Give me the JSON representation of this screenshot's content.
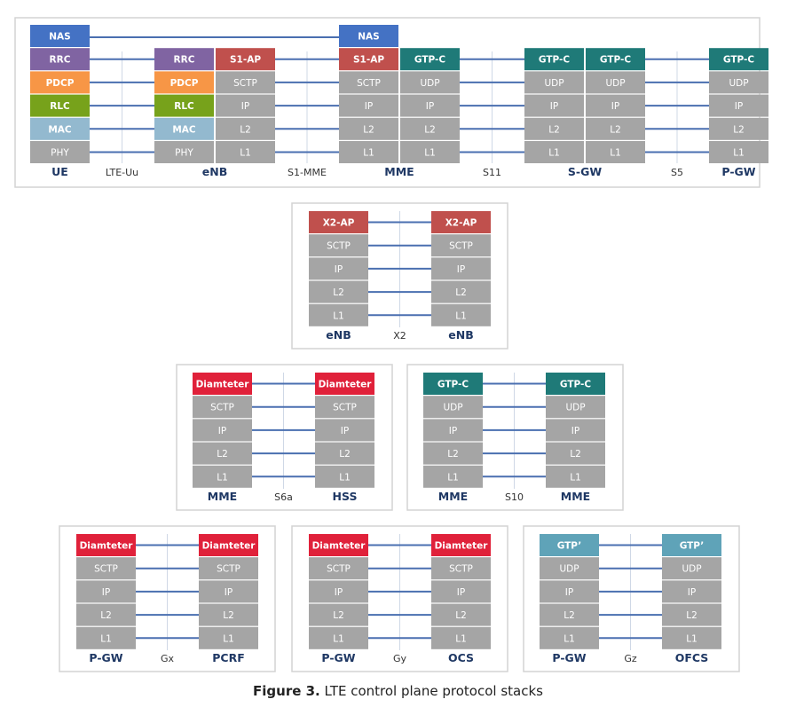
{
  "caption": {
    "label": "Figure 3.",
    "text": "LTE control plane protocol stacks"
  },
  "colors": {
    "nas": "#4472c4",
    "rrc": "#8064a2",
    "pdcp": "#f79646",
    "rlc": "#77a21b",
    "mac": "#93b9cf",
    "gray": "#a5a5a5",
    "red": "#c0504d",
    "teal": "#1f7a78",
    "crimson": "#e0213a",
    "gtpp": "#5fa3b8",
    "entity": "#1f3864",
    "line": "#4a6fb0"
  },
  "panels": [
    {
      "id": "main",
      "stacks": [
        {
          "name": "UE",
          "layers": [
            [
              "NAS",
              "nas"
            ],
            [
              "RRC",
              "rrc"
            ],
            [
              "PDCP",
              "pdcp"
            ],
            [
              "RLC",
              "rlc"
            ],
            [
              "MAC",
              "mac"
            ],
            [
              "PHY",
              "gray"
            ]
          ]
        },
        {
          "name": "eNB",
          "layers": [
            [
              "RRC",
              "rrc"
            ],
            [
              "PDCP",
              "pdcp"
            ],
            [
              "RLC",
              "rlc"
            ],
            [
              "MAC",
              "mac"
            ],
            [
              "PHY",
              "gray"
            ]
          ]
        },
        {
          "name": "",
          "layers": [
            [
              "S1-AP",
              "red"
            ],
            [
              "SCTP",
              "gray"
            ],
            [
              "IP",
              "gray"
            ],
            [
              "L2",
              "gray"
            ],
            [
              "L1",
              "gray"
            ]
          ]
        },
        {
          "name": "MME",
          "layers": [
            [
              "NAS",
              "nas"
            ],
            [
              "S1-AP",
              "red"
            ],
            [
              "SCTP",
              "gray"
            ],
            [
              "IP",
              "gray"
            ],
            [
              "L2",
              "gray"
            ],
            [
              "L1",
              "gray"
            ]
          ]
        },
        {
          "name": "",
          "layers": [
            [
              "GTP-C",
              "teal"
            ],
            [
              "UDP",
              "gray"
            ],
            [
              "IP",
              "gray"
            ],
            [
              "L2",
              "gray"
            ],
            [
              "L1",
              "gray"
            ]
          ]
        },
        {
          "name": "S-GW",
          "layers": [
            [
              "GTP-C",
              "teal"
            ],
            [
              "UDP",
              "gray"
            ],
            [
              "IP",
              "gray"
            ],
            [
              "L2",
              "gray"
            ],
            [
              "L1",
              "gray"
            ]
          ]
        },
        {
          "name": "",
          "layers": [
            [
              "GTP-C",
              "teal"
            ],
            [
              "UDP",
              "gray"
            ],
            [
              "IP",
              "gray"
            ],
            [
              "L2",
              "gray"
            ],
            [
              "L1",
              "gray"
            ]
          ]
        },
        {
          "name": "P-GW",
          "layers": [
            [
              "GTP-C",
              "teal"
            ],
            [
              "UDP",
              "gray"
            ],
            [
              "IP",
              "gray"
            ],
            [
              "L2",
              "gray"
            ],
            [
              "L1",
              "gray"
            ]
          ]
        }
      ],
      "interfaces": [
        "LTE-Uu",
        "S1-MME",
        "S11",
        "S5"
      ]
    },
    {
      "id": "x2",
      "stacks": [
        {
          "name": "eNB",
          "layers": [
            [
              "X2-AP",
              "red"
            ],
            [
              "SCTP",
              "gray"
            ],
            [
              "IP",
              "gray"
            ],
            [
              "L2",
              "gray"
            ],
            [
              "L1",
              "gray"
            ]
          ]
        },
        {
          "name": "eNB",
          "layers": [
            [
              "X2-AP",
              "red"
            ],
            [
              "SCTP",
              "gray"
            ],
            [
              "IP",
              "gray"
            ],
            [
              "L2",
              "gray"
            ],
            [
              "L1",
              "gray"
            ]
          ]
        }
      ],
      "interfaces": [
        "X2"
      ]
    },
    {
      "id": "s6a",
      "stacks": [
        {
          "name": "MME",
          "layers": [
            [
              "Diamteter",
              "crimson"
            ],
            [
              "SCTP",
              "gray"
            ],
            [
              "IP",
              "gray"
            ],
            [
              "L2",
              "gray"
            ],
            [
              "L1",
              "gray"
            ]
          ]
        },
        {
          "name": "HSS",
          "layers": [
            [
              "Diamteter",
              "crimson"
            ],
            [
              "SCTP",
              "gray"
            ],
            [
              "IP",
              "gray"
            ],
            [
              "L2",
              "gray"
            ],
            [
              "L1",
              "gray"
            ]
          ]
        }
      ],
      "interfaces": [
        "S6a"
      ]
    },
    {
      "id": "s10",
      "stacks": [
        {
          "name": "MME",
          "layers": [
            [
              "GTP-C",
              "teal"
            ],
            [
              "UDP",
              "gray"
            ],
            [
              "IP",
              "gray"
            ],
            [
              "L2",
              "gray"
            ],
            [
              "L1",
              "gray"
            ]
          ]
        },
        {
          "name": "MME",
          "layers": [
            [
              "GTP-C",
              "teal"
            ],
            [
              "UDP",
              "gray"
            ],
            [
              "IP",
              "gray"
            ],
            [
              "L2",
              "gray"
            ],
            [
              "L1",
              "gray"
            ]
          ]
        }
      ],
      "interfaces": [
        "S10"
      ]
    },
    {
      "id": "gx",
      "stacks": [
        {
          "name": "P-GW",
          "layers": [
            [
              "Diamteter",
              "crimson"
            ],
            [
              "SCTP",
              "gray"
            ],
            [
              "IP",
              "gray"
            ],
            [
              "L2",
              "gray"
            ],
            [
              "L1",
              "gray"
            ]
          ]
        },
        {
          "name": "PCRF",
          "layers": [
            [
              "Diamteter",
              "crimson"
            ],
            [
              "SCTP",
              "gray"
            ],
            [
              "IP",
              "gray"
            ],
            [
              "L2",
              "gray"
            ],
            [
              "L1",
              "gray"
            ]
          ]
        }
      ],
      "interfaces": [
        "Gx"
      ]
    },
    {
      "id": "gy",
      "stacks": [
        {
          "name": "P-GW",
          "layers": [
            [
              "Diamteter",
              "crimson"
            ],
            [
              "SCTP",
              "gray"
            ],
            [
              "IP",
              "gray"
            ],
            [
              "L2",
              "gray"
            ],
            [
              "L1",
              "gray"
            ]
          ]
        },
        {
          "name": "OCS",
          "layers": [
            [
              "Diamteter",
              "crimson"
            ],
            [
              "SCTP",
              "gray"
            ],
            [
              "IP",
              "gray"
            ],
            [
              "L2",
              "gray"
            ],
            [
              "L1",
              "gray"
            ]
          ]
        }
      ],
      "interfaces": [
        "Gy"
      ]
    },
    {
      "id": "gz",
      "stacks": [
        {
          "name": "P-GW",
          "layers": [
            [
              "GTP’",
              "gtpp"
            ],
            [
              "UDP",
              "gray"
            ],
            [
              "IP",
              "gray"
            ],
            [
              "L2",
              "gray"
            ],
            [
              "L1",
              "gray"
            ]
          ]
        },
        {
          "name": "OFCS",
          "layers": [
            [
              "GTP’",
              "gtpp"
            ],
            [
              "UDP",
              "gray"
            ],
            [
              "IP",
              "gray"
            ],
            [
              "L2",
              "gray"
            ],
            [
              "L1",
              "gray"
            ]
          ]
        }
      ],
      "interfaces": [
        "Gz"
      ]
    }
  ]
}
